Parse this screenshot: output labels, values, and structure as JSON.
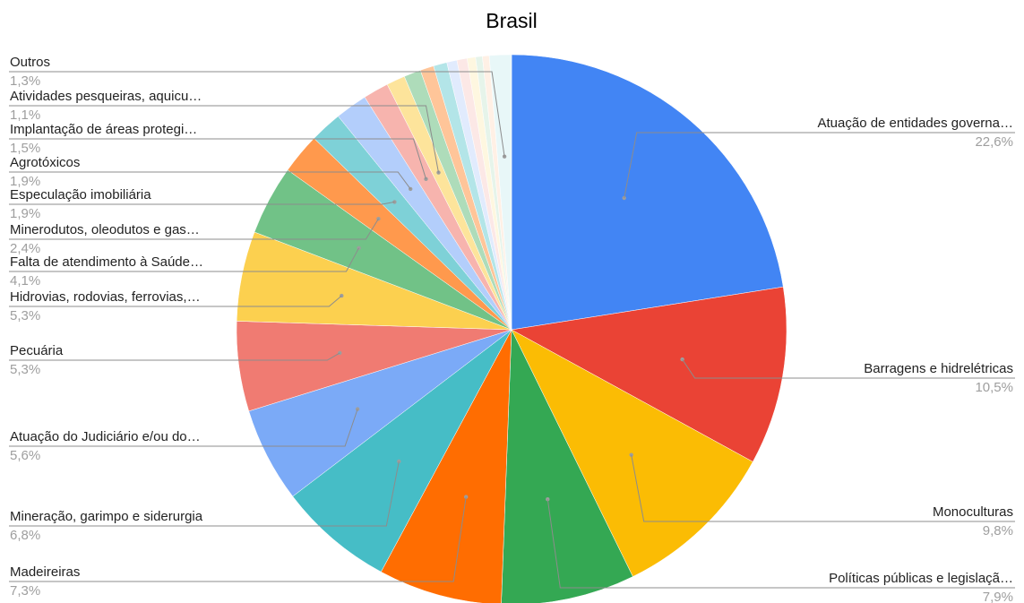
{
  "chart_data": {
    "type": "pie",
    "title": "Brasil",
    "slices": [
      {
        "label": "Atuação de entidades governa…",
        "value": 22.6,
        "pct_label": "22,6%",
        "color": "#4285F4"
      },
      {
        "label": "Barragens e hidrelétricas",
        "value": 10.5,
        "pct_label": "10,5%",
        "color": "#EA4335"
      },
      {
        "label": "Monoculturas",
        "value": 9.8,
        "pct_label": "9,8%",
        "color": "#FBBC04"
      },
      {
        "label": "Políticas públicas e legislaçã…",
        "value": 7.9,
        "pct_label": "7,9%",
        "color": "#34A853"
      },
      {
        "label": "Madeireiras",
        "value": 7.3,
        "pct_label": "7,3%",
        "color": "#FF6D01"
      },
      {
        "label": "Mineração, garimpo e siderurgia",
        "value": 6.8,
        "pct_label": "6,8%",
        "color": "#46BDC6"
      },
      {
        "label": "Atuação do Judiciário e/ou do…",
        "value": 5.6,
        "pct_label": "5,6%",
        "color": "#7BAAF7"
      },
      {
        "label": "Pecuária",
        "value": 5.3,
        "pct_label": "5,3%",
        "color": "#F07B72"
      },
      {
        "label": "Hidrovias, rodovias, ferrovias,…",
        "value": 5.3,
        "pct_label": "5,3%",
        "color": "#FCD04F"
      },
      {
        "label": "Falta de atendimento à Saúde…",
        "value": 4.1,
        "pct_label": "4,1%",
        "color": "#71C287"
      },
      {
        "label": "Minerodutos, oleodutos e gas…",
        "value": 2.4,
        "pct_label": "2,4%",
        "color": "#FF994D"
      },
      {
        "label": "Especulação imobiliária",
        "value": 1.9,
        "pct_label": "1,9%",
        "color": "#7ED1D7"
      },
      {
        "label": "Agrotóxicos",
        "value": 1.9,
        "pct_label": "1,9%",
        "color": "#B3CEFB"
      },
      {
        "label": "Implantação de áreas protegi…",
        "value": 1.5,
        "pct_label": "1,5%",
        "color": "#F7B4AE"
      },
      {
        "label": "Atividades pesqueiras, aquicu…",
        "value": 1.1,
        "pct_label": "1,1%",
        "color": "#FDE49B"
      },
      {
        "label": "",
        "value": 1.0,
        "pct_label": "",
        "color": "#AEDCBA"
      },
      {
        "label": "",
        "value": 0.8,
        "pct_label": "",
        "color": "#FFC599"
      },
      {
        "label": "",
        "value": 0.8,
        "pct_label": "",
        "color": "#B3E5E8"
      },
      {
        "label": "",
        "value": 0.6,
        "pct_label": "",
        "color": "#E1EBFD"
      },
      {
        "label": "",
        "value": 0.6,
        "pct_label": "",
        "color": "#FCE8E6"
      },
      {
        "label": "",
        "value": 0.5,
        "pct_label": "",
        "color": "#FEF7E0"
      },
      {
        "label": "",
        "Value": 0.4,
        "value": 0.4,
        "pct_label": "",
        "color": "#E6F4EA"
      },
      {
        "label": "",
        "value": 0.4,
        "pct_label": "",
        "color": "#FFF0E5"
      },
      {
        "label": "Outros",
        "value": 1.3,
        "pct_label": "1,3%",
        "color": "#E8F7F8"
      }
    ],
    "legend": "none"
  }
}
